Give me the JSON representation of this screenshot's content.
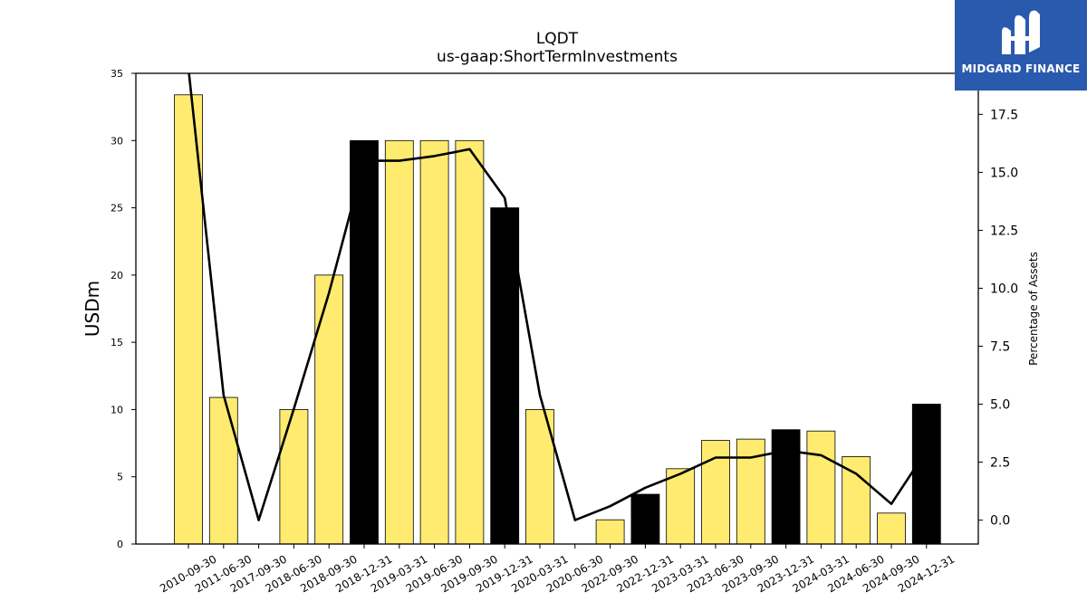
{
  "brand": {
    "name": "MIDGARD FINANCE",
    "bg_color": "#2a5aad",
    "logo_icon": "midgard-logo-icon"
  },
  "chart_data": {
    "type": "bar",
    "title": "LQDT",
    "subtitle": "us-gaap:ShortTermInvestments",
    "ylabel": "USDm",
    "y2label": "Percentage of Assets",
    "ylim": [
      0,
      35
    ],
    "y2lim": [
      -1.03,
      19.27
    ],
    "yticks": [
      0,
      5,
      10,
      15,
      20,
      25,
      30,
      35
    ],
    "y2ticks": [
      0.0,
      2.5,
      5.0,
      7.5,
      10.0,
      12.5,
      15.0,
      17.5
    ],
    "y2tick_labels": [
      "0.0",
      "2.5",
      "5.0",
      "7.5",
      "10.0",
      "12.5",
      "15.0",
      "17.5"
    ],
    "categories": [
      "2010-09-30",
      "2011-06-30",
      "2017-09-30",
      "2018-06-30",
      "2018-09-30",
      "2018-12-31",
      "2019-03-31",
      "2019-06-30",
      "2019-09-30",
      "2019-12-31",
      "2020-03-31",
      "2020-06-30",
      "2022-09-30",
      "2022-12-31",
      "2023-03-31",
      "2023-06-30",
      "2023-09-30",
      "2023-12-31",
      "2024-03-31",
      "2024-06-30",
      "2024-09-30",
      "2024-12-31"
    ],
    "series": [
      {
        "name": "",
        "kind": "bar",
        "values": [
          33.4,
          10.9,
          0,
          10.0,
          20.0,
          30.0,
          30.0,
          30.0,
          30.0,
          25.0,
          10.0,
          0,
          1.8,
          3.7,
          5.6,
          7.7,
          7.8,
          8.5,
          8.4,
          6.5,
          2.3,
          10.4
        ]
      },
      {
        "name": "",
        "kind": "line",
        "axis": "right",
        "values": [
          19.5,
          5.4,
          0.0,
          4.8,
          9.8,
          15.5,
          15.5,
          15.7,
          16.0,
          13.9,
          5.4,
          0.0,
          0.6,
          1.4,
          2.0,
          2.7,
          2.7,
          3.0,
          2.8,
          2.0,
          0.7,
          3.0
        ]
      }
    ],
    "highlight": [
      false,
      false,
      false,
      false,
      false,
      true,
      false,
      false,
      false,
      true,
      false,
      false,
      false,
      true,
      false,
      false,
      false,
      true,
      false,
      false,
      false,
      true
    ],
    "colors": {
      "bar": "#ffeb70",
      "bar_highlight": "#000000",
      "bar_edge": "#000000",
      "line": "#000000"
    },
    "grid": false,
    "legend": "none"
  }
}
